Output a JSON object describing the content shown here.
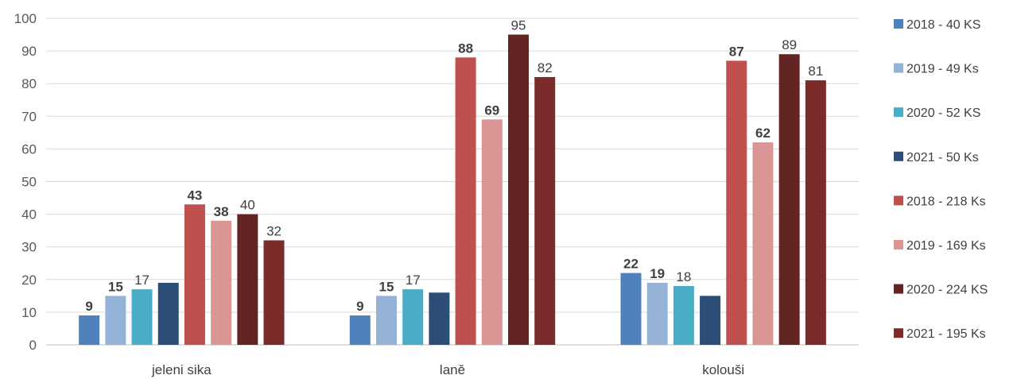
{
  "chart_data": {
    "type": "bar",
    "categories": [
      "jeleni sika",
      "laně",
      "kolouši"
    ],
    "ylim": [
      0,
      100
    ],
    "yticks": [
      0,
      10,
      20,
      30,
      40,
      50,
      60,
      70,
      80,
      90,
      100
    ],
    "grid": true,
    "legend_position": "right",
    "series": [
      {
        "name": "2018 - 40 KS",
        "color": "#4f81bd",
        "values": [
          9,
          9,
          22
        ],
        "labels": [
          "9",
          "9",
          "22"
        ],
        "label_bold": [
          true,
          true,
          true
        ]
      },
      {
        "name": "2019 - 49 Ks",
        "color": "#95b3d7",
        "values": [
          15,
          15,
          19
        ],
        "labels": [
          "15",
          "15",
          "19"
        ],
        "label_bold": [
          true,
          true,
          true
        ]
      },
      {
        "name": "2020 - 52 KS",
        "color": "#4bacc6",
        "values": [
          17,
          17,
          18
        ],
        "labels": [
          "17",
          "17",
          "18"
        ],
        "label_bold": [
          false,
          false,
          false
        ]
      },
      {
        "name": "2021 - 50 Ks",
        "color": "#2c4d75",
        "values": [
          19,
          16,
          15
        ],
        "labels": [
          "",
          "",
          ""
        ],
        "label_bold": [
          false,
          false,
          false
        ]
      },
      {
        "name": "2018 - 218 Ks",
        "color": "#c0504d",
        "values": [
          43,
          88,
          87
        ],
        "labels": [
          "43",
          "88",
          "87"
        ],
        "label_bold": [
          true,
          true,
          true
        ]
      },
      {
        "name": "2019 - 169 Ks",
        "color": "#d99694",
        "values": [
          38,
          69,
          62
        ],
        "labels": [
          "38",
          "69",
          "62"
        ],
        "label_bold": [
          true,
          true,
          true
        ]
      },
      {
        "name": "2020 - 224 KS",
        "color": "#632523",
        "values": [
          40,
          95,
          89
        ],
        "labels": [
          "40",
          "95",
          "89"
        ],
        "label_bold": [
          false,
          false,
          false
        ]
      },
      {
        "name": "2021 - 195 Ks",
        "color": "#7a2b2a",
        "values": [
          32,
          82,
          81
        ],
        "labels": [
          "32",
          "82",
          "81"
        ],
        "label_bold": [
          false,
          false,
          false
        ]
      }
    ]
  }
}
